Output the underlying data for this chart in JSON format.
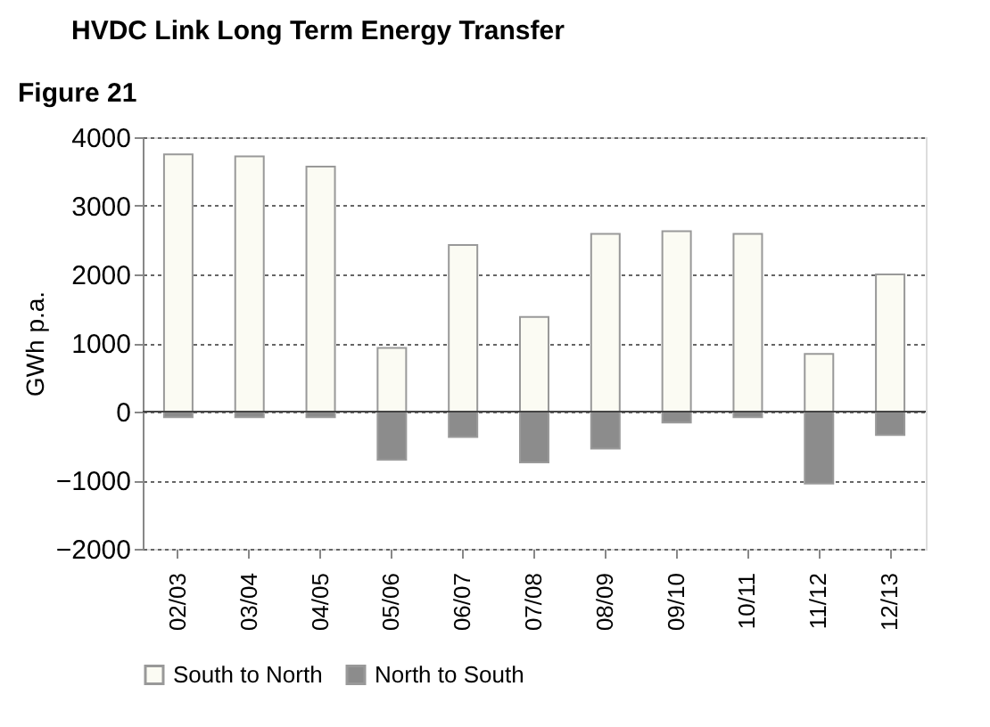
{
  "chart_data": {
    "type": "bar",
    "title": "HVDC Link Long Term Energy Transfer",
    "annotations": [
      "Figure 21"
    ],
    "ylabel": "GWh p.a.",
    "categories": [
      "02/03",
      "03/04",
      "04/05",
      "05/06",
      "06/07",
      "07/08",
      "08/09",
      "09/10",
      "10/11",
      "11/12",
      "12/13"
    ],
    "series": [
      {
        "name": "South to North",
        "color": "#fbfbf3",
        "values": [
          3750,
          3720,
          3570,
          930,
          2430,
          1380,
          2590,
          2630,
          2590,
          840,
          2000
        ]
      },
      {
        "name": "North to South",
        "color": "#8c8c8c",
        "values": [
          -80,
          -80,
          -80,
          -700,
          -370,
          -740,
          -540,
          -160,
          -80,
          -1050,
          -340
        ]
      }
    ],
    "ylim": [
      -2000,
      4000
    ],
    "yticks": [
      -2000,
      -1000,
      0,
      1000,
      2000,
      3000,
      4000
    ],
    "stacked": true,
    "grid": "y",
    "legend": "bottom"
  }
}
